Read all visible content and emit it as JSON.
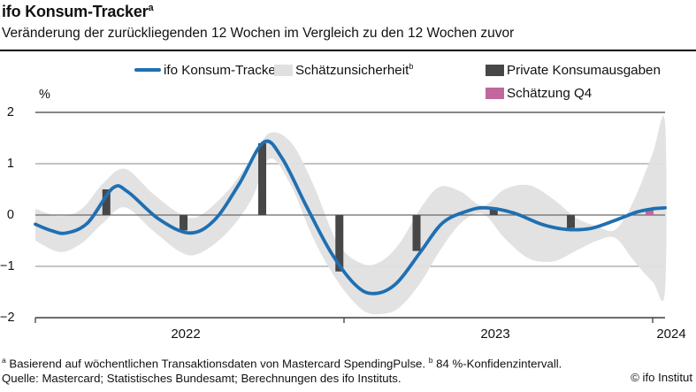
{
  "header": {
    "title": "ifo Konsum-Tracker",
    "title_sup": "a",
    "subtitle": "Veränderung der zurückliegenden 12 Wochen im Vergleich zu den 12 Wochen zuvor"
  },
  "legend": {
    "tracker": {
      "label": "ifo Konsum-Tracker"
    },
    "band": {
      "label": "Schätzunsicherheit",
      "sup": "b"
    },
    "bars": {
      "label": "Private Konsumausgaben"
    },
    "estimate": {
      "label": "Schätzung Q4"
    }
  },
  "colors": {
    "line": "#1f6fb2",
    "band": "#e0e0e0",
    "bars": "#474747",
    "estimate": "#c1679b",
    "grid": "#8a8a8a",
    "zero_line": "#6a6a6a",
    "axis": "#3d3d3d"
  },
  "chart_data": {
    "type": "line",
    "title": "ifo Konsum-Tracker",
    "ylabel": "%",
    "ylim": [
      -2,
      2
    ],
    "grid": true,
    "legend_position": "top",
    "yticks": [
      {
        "v": 2,
        "label": "2"
      },
      {
        "v": 1,
        "label": "1"
      },
      {
        "v": 0,
        "label": "0"
      },
      {
        "v": -1,
        "label": "−1"
      },
      {
        "v": -2,
        "label": "−2"
      }
    ],
    "xtick_years": [
      2022,
      2023,
      2024
    ],
    "xlabels": [
      "2022",
      "2023",
      "2024"
    ],
    "series": [
      {
        "name": "ifo Konsum-Tracker",
        "type": "line",
        "color": "#1f6fb2",
        "points": [
          [
            2022.0,
            -0.18
          ],
          [
            2022.05,
            -0.3
          ],
          [
            2022.1,
            -0.35
          ],
          [
            2022.17,
            -0.15
          ],
          [
            2022.25,
            0.52
          ],
          [
            2022.3,
            0.45
          ],
          [
            2022.4,
            -0.08
          ],
          [
            2022.5,
            -0.35
          ],
          [
            2022.58,
            -0.1
          ],
          [
            2022.66,
            0.6
          ],
          [
            2022.74,
            1.42
          ],
          [
            2022.8,
            1.1
          ],
          [
            2022.88,
            0.15
          ],
          [
            2022.96,
            -0.75
          ],
          [
            2023.04,
            -1.38
          ],
          [
            2023.1,
            -1.53
          ],
          [
            2023.17,
            -1.33
          ],
          [
            2023.25,
            -0.7
          ],
          [
            2023.32,
            -0.15
          ],
          [
            2023.4,
            0.08
          ],
          [
            2023.46,
            0.14
          ],
          [
            2023.55,
            0.04
          ],
          [
            2023.64,
            -0.18
          ],
          [
            2023.72,
            -0.28
          ],
          [
            2023.8,
            -0.26
          ],
          [
            2023.88,
            -0.1
          ],
          [
            2023.95,
            0.06
          ],
          [
            2024.0,
            0.12
          ],
          [
            2024.04,
            0.14
          ]
        ]
      },
      {
        "name": "Schätzunsicherheit (84 %-Konfidenzintervall)",
        "type": "band",
        "color": "#e0e0e0",
        "upper": [
          [
            2022.0,
            0.12
          ],
          [
            2022.08,
            -0.02
          ],
          [
            2022.15,
            0.12
          ],
          [
            2022.22,
            0.62
          ],
          [
            2022.29,
            0.9
          ],
          [
            2022.38,
            0.42
          ],
          [
            2022.47,
            0.02
          ],
          [
            2022.53,
            -0.02
          ],
          [
            2022.62,
            0.45
          ],
          [
            2022.7,
            1.1
          ],
          [
            2022.76,
            1.6
          ],
          [
            2022.83,
            1.4
          ],
          [
            2022.9,
            0.6
          ],
          [
            2022.98,
            -0.55
          ],
          [
            2023.06,
            -0.95
          ],
          [
            2023.12,
            -0.9
          ],
          [
            2023.18,
            -0.55
          ],
          [
            2023.25,
            0.15
          ],
          [
            2023.31,
            0.55
          ],
          [
            2023.38,
            0.45
          ],
          [
            2023.45,
            0.18
          ],
          [
            2023.52,
            0.5
          ],
          [
            2023.6,
            0.58
          ],
          [
            2023.68,
            0.3
          ],
          [
            2023.75,
            -0.05
          ],
          [
            2023.82,
            -0.22
          ],
          [
            2023.88,
            -0.28
          ],
          [
            2023.94,
            0.3
          ],
          [
            2024.0,
            1.2
          ],
          [
            2024.04,
            1.8
          ]
        ],
        "lower": [
          [
            2022.0,
            -0.5
          ],
          [
            2022.08,
            -0.72
          ],
          [
            2022.15,
            -0.55
          ],
          [
            2022.22,
            -0.15
          ],
          [
            2022.29,
            0.15
          ],
          [
            2022.38,
            -0.3
          ],
          [
            2022.47,
            -0.72
          ],
          [
            2022.53,
            -0.75
          ],
          [
            2022.62,
            -0.35
          ],
          [
            2022.7,
            0.3
          ],
          [
            2022.76,
            1.1
          ],
          [
            2022.83,
            0.55
          ],
          [
            2022.9,
            -0.45
          ],
          [
            2022.98,
            -1.3
          ],
          [
            2023.06,
            -1.85
          ],
          [
            2023.12,
            -1.93
          ],
          [
            2023.18,
            -1.8
          ],
          [
            2023.25,
            -1.3
          ],
          [
            2023.31,
            -0.7
          ],
          [
            2023.38,
            -0.15
          ],
          [
            2023.45,
            0.02
          ],
          [
            2023.52,
            -0.45
          ],
          [
            2023.6,
            -0.85
          ],
          [
            2023.68,
            -0.9
          ],
          [
            2023.75,
            -0.7
          ],
          [
            2023.82,
            -0.5
          ],
          [
            2023.88,
            -0.45
          ],
          [
            2023.94,
            -0.9
          ],
          [
            2024.0,
            -1.3
          ],
          [
            2024.04,
            -1.47
          ]
        ]
      },
      {
        "name": "Private Konsumausgaben",
        "type": "bar",
        "color": "#474747",
        "points": [
          {
            "quarter": "Q1 2022",
            "x": 2022.23,
            "value": 0.5
          },
          {
            "quarter": "Q2 2022",
            "x": 2022.48,
            "value": -0.3
          },
          {
            "quarter": "Q3 2022",
            "x": 2022.735,
            "value": 1.4
          },
          {
            "quarter": "Q4 2022",
            "x": 2022.985,
            "value": -1.1
          },
          {
            "quarter": "Q1 2023",
            "x": 2023.235,
            "value": -0.7
          },
          {
            "quarter": "Q2 2023",
            "x": 2023.485,
            "value": 0.15
          },
          {
            "quarter": "Q3 2023",
            "x": 2023.735,
            "value": -0.25
          }
        ]
      },
      {
        "name": "Schätzung Q4",
        "type": "bar",
        "color": "#c1679b",
        "points": [
          {
            "quarter": "Q4 2023",
            "x": 2023.99,
            "value": 0.12
          }
        ]
      }
    ]
  },
  "footnotes": {
    "sup_a": "a",
    "note_a": "Basierend auf wöchentlichen Transaktionsdaten von Mastercard SpendingPulse.",
    "sup_b": "b",
    "note_b": "84 %-Konfidenzintervall.",
    "source": "Quelle: Mastercard; Statistisches Bundesamt; Berechnungen des ifo Instituts.",
    "copyright": "© ifo Institut"
  }
}
